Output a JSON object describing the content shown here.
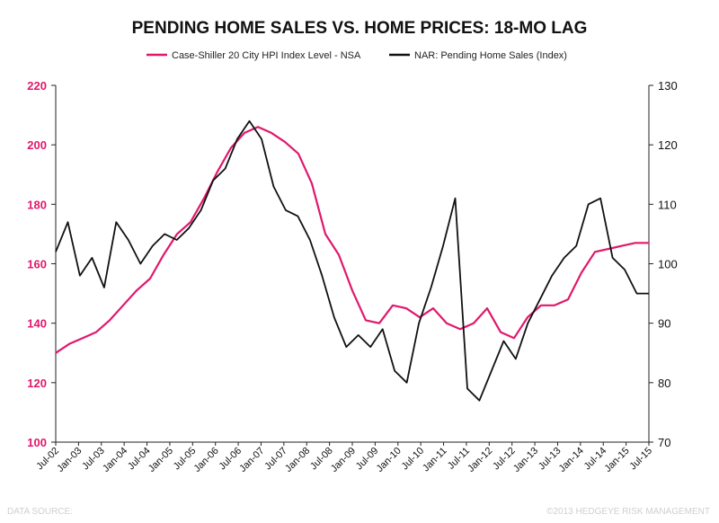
{
  "chart_data": {
    "type": "line",
    "title": "PENDING HOME SALES VS. HOME PRICES: 18-MO LAG",
    "legend_position": "top",
    "colors": {
      "left_series": "#e0186c",
      "right_series": "#111111",
      "axis": "#222222",
      "footer": "#cfcfcf"
    },
    "x_labels": [
      "Jul-02",
      "Jan-03",
      "Jul-03",
      "Jan-04",
      "Jul-04",
      "Jan-05",
      "Jul-05",
      "Jan-06",
      "Jul-06",
      "Jan-07",
      "Jul-07",
      "Jan-08",
      "Jul-08",
      "Jan-09",
      "Jul-09",
      "Jan-10",
      "Jul-10",
      "Jan-11",
      "Jul-11",
      "Jan-12",
      "Jul-12",
      "Jan-13",
      "Jul-13",
      "Jan-14",
      "Jul-14",
      "Jan-15",
      "Jul-15"
    ],
    "y_left": {
      "min": 100,
      "max": 220,
      "ticks": [
        100,
        120,
        140,
        160,
        180,
        200,
        220
      ],
      "label": ""
    },
    "y_right": {
      "min": 70,
      "max": 130,
      "ticks": [
        70,
        80,
        90,
        100,
        110,
        120,
        130
      ],
      "label": ""
    },
    "series": [
      {
        "name": "Case-Shiller 20 City HPI Index Level - NSA",
        "axis": "left",
        "color": "#e0186c",
        "points": [
          [
            0,
            130
          ],
          [
            1,
            133
          ],
          [
            2,
            135
          ],
          [
            3,
            137
          ],
          [
            4,
            141
          ],
          [
            5,
            146
          ],
          [
            6,
            151
          ],
          [
            7,
            155
          ],
          [
            8,
            163
          ],
          [
            9,
            170
          ],
          [
            10,
            174
          ],
          [
            11,
            182
          ],
          [
            12,
            191
          ],
          [
            13,
            199
          ],
          [
            14,
            204
          ],
          [
            15,
            206
          ],
          [
            16,
            204
          ],
          [
            17,
            201
          ],
          [
            18,
            197
          ],
          [
            19,
            187
          ],
          [
            20,
            170
          ],
          [
            21,
            163
          ],
          [
            22,
            151
          ],
          [
            23,
            141
          ],
          [
            24,
            140
          ],
          [
            25,
            146
          ],
          [
            26,
            145
          ],
          [
            27,
            142
          ],
          [
            28,
            145
          ],
          [
            29,
            140
          ],
          [
            30,
            138
          ],
          [
            31,
            140
          ],
          [
            32,
            145
          ],
          [
            33,
            137
          ],
          [
            34,
            135
          ],
          [
            35,
            142
          ],
          [
            36,
            146
          ],
          [
            37,
            146
          ],
          [
            38,
            148
          ],
          [
            39,
            157
          ],
          [
            40,
            164
          ],
          [
            41,
            165
          ],
          [
            42,
            166
          ],
          [
            43,
            167
          ],
          [
            44,
            167
          ]
        ]
      },
      {
        "name": "NAR: Pending Home Sales (Index)",
        "axis": "right",
        "color": "#111111",
        "points": [
          [
            0,
            102
          ],
          [
            1,
            107
          ],
          [
            2,
            98
          ],
          [
            3,
            101
          ],
          [
            4,
            96
          ],
          [
            5,
            107
          ],
          [
            6,
            104
          ],
          [
            7,
            100
          ],
          [
            8,
            103
          ],
          [
            9,
            105
          ],
          [
            10,
            104
          ],
          [
            11,
            106
          ],
          [
            12,
            109
          ],
          [
            13,
            114
          ],
          [
            14,
            116
          ],
          [
            15,
            121
          ],
          [
            16,
            124
          ],
          [
            17,
            121
          ],
          [
            18,
            113
          ],
          [
            19,
            109
          ],
          [
            20,
            108
          ],
          [
            21,
            104
          ],
          [
            22,
            98
          ],
          [
            23,
            91
          ],
          [
            24,
            86
          ],
          [
            25,
            88
          ],
          [
            26,
            86
          ],
          [
            27,
            89
          ],
          [
            28,
            82
          ],
          [
            29,
            80
          ],
          [
            30,
            90
          ],
          [
            31,
            96
          ],
          [
            32,
            103
          ],
          [
            33,
            111
          ],
          [
            34,
            79
          ],
          [
            35,
            77
          ],
          [
            36,
            82
          ],
          [
            37,
            87
          ],
          [
            38,
            84
          ],
          [
            39,
            90
          ],
          [
            40,
            94
          ],
          [
            41,
            98
          ],
          [
            42,
            101
          ],
          [
            43,
            103
          ],
          [
            44,
            110
          ],
          [
            45,
            111
          ],
          [
            46,
            101
          ],
          [
            47,
            99
          ],
          [
            48,
            95
          ],
          [
            49,
            95
          ]
        ]
      }
    ],
    "data_source_label": "DATA SOURCE:",
    "credit_label": "©2013 HEDGEYE RISK MANAGEMENT"
  }
}
